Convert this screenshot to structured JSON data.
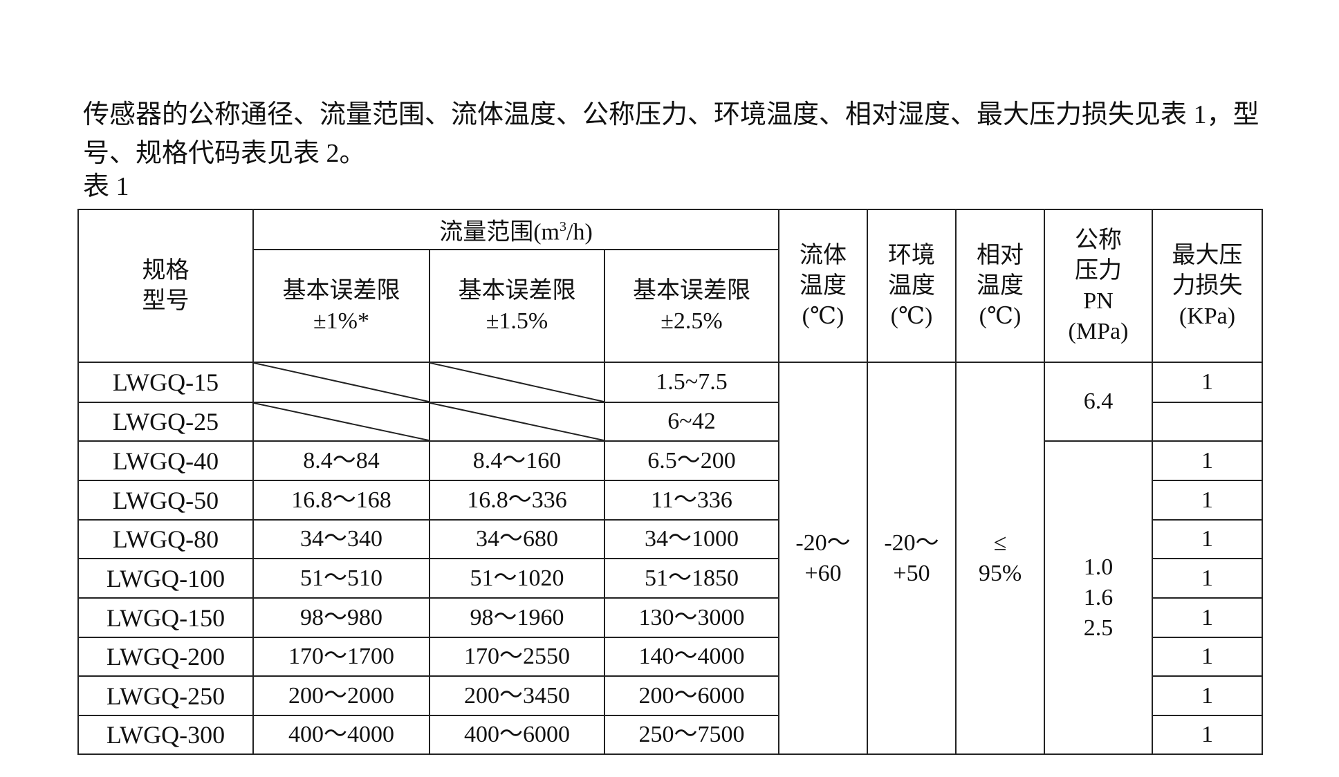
{
  "intro": "传感器的公称通径、流量范围、流体温度、公称压力、环境温度、相对湿度、最大压力损失见表 1，型号、规格代码表见表 2。",
  "caption": "表 1",
  "header": {
    "model_line1": "规格",
    "model_line2": "型号",
    "flow_range": "流量范围(m",
    "flow_sup": "3",
    "flow_unit_tail": "/h)",
    "err_label": "基本误差限",
    "err1": "±1%*",
    "err2": "±1.5%",
    "err3": "±2.5%",
    "fluid_temp": [
      "流体",
      "温度",
      "(℃)"
    ],
    "env_temp": [
      "环境",
      "温度",
      "(℃)"
    ],
    "humidity": [
      "相对",
      "温度",
      "(℃)"
    ],
    "pressure": [
      "公称",
      "压力",
      "PN",
      "(MPa)"
    ],
    "loss": [
      "最大压",
      "力损失",
      "(KPa)"
    ]
  },
  "merged": {
    "fluid_temp": [
      "-20～",
      "+60"
    ],
    "env_temp": [
      "-20～",
      "+50"
    ],
    "humidity": [
      "≤",
      "95%"
    ],
    "pressure_small": "6.4",
    "pressure_large": [
      "1.0",
      "1.6",
      "2.5"
    ]
  },
  "rows": [
    {
      "model": "LWGQ-15",
      "c1": "",
      "c2": "",
      "c3": "1.5~7.5",
      "loss": "1",
      "diagonal": true
    },
    {
      "model": "LWGQ-25",
      "c1": "",
      "c2": "",
      "c3": "6~42",
      "loss": "",
      "diagonal": true
    },
    {
      "model": "LWGQ-40",
      "c1": "8.4～84",
      "c2": "8.4～160",
      "c3": "6.5～200",
      "loss": "1"
    },
    {
      "model": "LWGQ-50",
      "c1": "16.8～168",
      "c2": "16.8～336",
      "c3": "11～336",
      "loss": "1"
    },
    {
      "model": "LWGQ-80",
      "c1": "34～340",
      "c2": "34～680",
      "c3": "34～1000",
      "loss": "1"
    },
    {
      "model": "LWGQ-100",
      "c1": "51～510",
      "c2": "51～1020",
      "c3": "51～1850",
      "loss": "1"
    },
    {
      "model": "LWGQ-150",
      "c1": "98～980",
      "c2": "98～1960",
      "c3": "130～3000",
      "loss": "1"
    },
    {
      "model": "LWGQ-200",
      "c1": "170～1700",
      "c2": "170～2550",
      "c3": "140～4000",
      "loss": "1"
    },
    {
      "model": "LWGQ-250",
      "c1": "200～2000",
      "c2": "200～3450",
      "c3": "200～6000",
      "loss": "1"
    },
    {
      "model": "LWGQ-300",
      "c1": "400～4000",
      "c2": "400～6000",
      "c3": "250～7500",
      "loss": "1"
    }
  ]
}
